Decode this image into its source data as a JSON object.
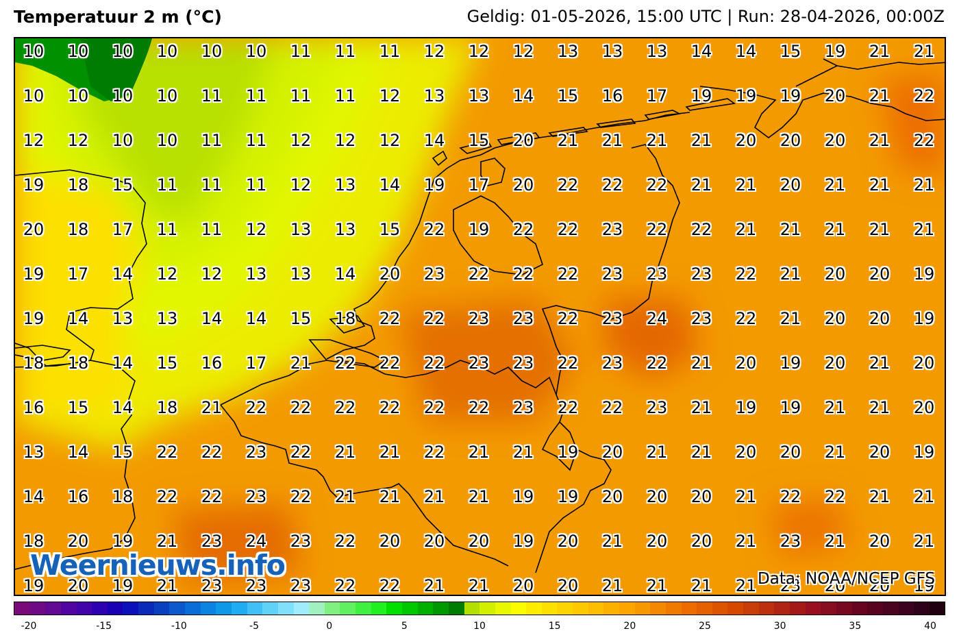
{
  "header": {
    "title": "Temperatuur 2 m (°C)",
    "valid": "Geldig: 01-05-2026, 15:00 UTC | Run: 28-04-2026, 00:00Z"
  },
  "map": {
    "grid": [
      [
        10,
        10,
        10,
        10,
        10,
        10,
        11,
        11,
        11,
        12,
        12,
        12,
        13,
        13,
        13,
        14,
        14,
        15,
        19,
        21,
        21
      ],
      [
        10,
        10,
        10,
        10,
        11,
        11,
        11,
        11,
        12,
        13,
        13,
        14,
        15,
        16,
        17,
        19,
        19,
        19,
        20,
        21,
        22
      ],
      [
        12,
        12,
        10,
        10,
        11,
        11,
        12,
        12,
        12,
        14,
        15,
        20,
        21,
        21,
        21,
        21,
        20,
        20,
        20,
        21,
        22
      ],
      [
        19,
        18,
        15,
        11,
        11,
        11,
        12,
        13,
        14,
        19,
        17,
        20,
        22,
        22,
        22,
        21,
        21,
        20,
        21,
        21,
        21
      ],
      [
        20,
        18,
        17,
        11,
        11,
        12,
        13,
        13,
        15,
        22,
        19,
        22,
        22,
        23,
        22,
        22,
        21,
        21,
        21,
        21,
        21
      ],
      [
        19,
        17,
        14,
        12,
        12,
        13,
        13,
        14,
        20,
        23,
        22,
        22,
        22,
        23,
        23,
        23,
        22,
        21,
        20,
        20,
        19
      ],
      [
        19,
        14,
        13,
        13,
        14,
        14,
        15,
        18,
        22,
        22,
        23,
        23,
        22,
        23,
        24,
        23,
        22,
        21,
        20,
        20,
        19
      ],
      [
        18,
        18,
        14,
        15,
        16,
        17,
        21,
        22,
        22,
        22,
        23,
        23,
        22,
        23,
        22,
        21,
        20,
        19,
        20,
        21,
        20
      ],
      [
        16,
        15,
        14,
        18,
        21,
        22,
        22,
        22,
        22,
        22,
        22,
        23,
        22,
        22,
        23,
        21,
        19,
        19,
        21,
        21,
        20
      ],
      [
        13,
        14,
        15,
        22,
        22,
        23,
        22,
        21,
        21,
        22,
        21,
        21,
        19,
        20,
        21,
        21,
        20,
        20,
        21,
        20,
        19
      ],
      [
        14,
        16,
        18,
        22,
        22,
        23,
        22,
        21,
        21,
        21,
        21,
        19,
        19,
        20,
        20,
        20,
        21,
        22,
        22,
        21,
        21
      ],
      [
        18,
        20,
        19,
        21,
        23,
        24,
        23,
        22,
        20,
        20,
        20,
        19,
        20,
        21,
        20,
        20,
        21,
        23,
        21,
        20,
        21
      ],
      [
        19,
        20,
        19,
        21,
        23,
        23,
        23,
        22,
        22,
        21,
        21,
        20,
        20,
        21,
        21,
        21,
        21,
        23,
        20,
        20,
        19
      ]
    ],
    "logo": "Weernieuws.info",
    "credit": "Data: NOAA/NCEP GFS"
  },
  "colorbar": {
    "colors": [
      "#7a0a7a",
      "#6e0a86",
      "#620a94",
      "#5204a2",
      "#4204aa",
      "#2c00b0",
      "#1a00b4",
      "#0c10b8",
      "#0a2ab8",
      "#0a40c0",
      "#0a58cc",
      "#0a6ed8",
      "#0a84e0",
      "#1098e8",
      "#20acf0",
      "#40c0f4",
      "#60d2f8",
      "#80e0fa",
      "#a0ecfc",
      "#a0f0c0",
      "#80f080",
      "#60f060",
      "#40f040",
      "#20f020",
      "#00e000",
      "#00c800",
      "#00b000",
      "#009800",
      "#007c00",
      "#b4e000",
      "#d0f000",
      "#e8f800",
      "#fcfc00",
      "#fcec00",
      "#fce000",
      "#fcd400",
      "#fcc800",
      "#fcbc00",
      "#fcb000",
      "#fca400",
      "#f89800",
      "#f48800",
      "#f07a00",
      "#ec6c00",
      "#e46000",
      "#dc5400",
      "#d44800",
      "#c83c08",
      "#bc3010",
      "#b02414",
      "#a41818",
      "#981020",
      "#880c20",
      "#780820",
      "#680420",
      "#580420",
      "#4a0420",
      "#3c0220",
      "#2e0218",
      "#200010"
    ],
    "ticks": [
      "-20",
      "-15",
      "-10",
      "-5",
      "0",
      "5",
      "10",
      "15",
      "20",
      "25",
      "30",
      "35",
      "40"
    ]
  }
}
